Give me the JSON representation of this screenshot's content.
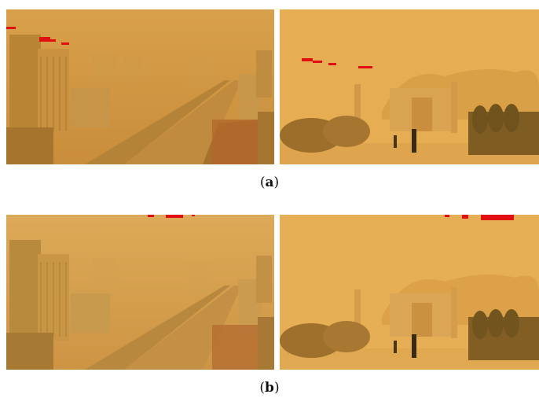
{
  "figure": {
    "rows": [
      {
        "caption_prefix": "(",
        "caption_letter": "a",
        "caption_suffix": ")",
        "left_panel": "city-dust-storm-photo",
        "right_panel": "mosque-dust-storm-photo"
      },
      {
        "caption_prefix": "(",
        "caption_letter": "b",
        "caption_suffix": ")",
        "left_panel": "city-dust-storm-photo",
        "right_panel": "mosque-dust-storm-photo"
      }
    ],
    "colors": {
      "haze": "#d9a24a",
      "haze_light": "#e6b560",
      "annotation": "#e01010",
      "background": "#ffffff"
    }
  }
}
